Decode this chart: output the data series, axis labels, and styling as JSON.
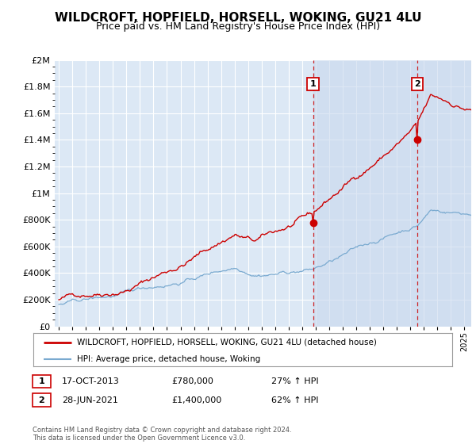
{
  "title": "WILDCROFT, HOPFIELD, HORSELL, WOKING, GU21 4LU",
  "subtitle": "Price paid vs. HM Land Registry's House Price Index (HPI)",
  "footer": "Contains HM Land Registry data © Crown copyright and database right 2024.\nThis data is licensed under the Open Government Licence v3.0.",
  "red_label": "WILDCROFT, HOPFIELD, HORSELL, WOKING, GU21 4LU (detached house)",
  "blue_label": "HPI: Average price, detached house, Woking",
  "annotation1": [
    "1",
    "17-OCT-2013",
    "£780,000",
    "27% ↑ HPI"
  ],
  "annotation2": [
    "2",
    "28-JUN-2021",
    "£1,400,000",
    "62% ↑ HPI"
  ],
  "vline1_x": 2013.8,
  "vline2_x": 2021.5,
  "dot1_x": 2013.8,
  "dot1_y": 780000,
  "dot2_x": 2021.5,
  "dot2_y": 1400000,
  "shade_start": 2013.8,
  "shade_end": 2025.5,
  "ylim": [
    0,
    2000000
  ],
  "xlim_start": 1994.7,
  "xlim_end": 2025.5,
  "plot_bg_color": "#dce8f5",
  "shade_color": "#c8d8ee",
  "red_color": "#cc0000",
  "blue_color": "#7aaad0",
  "grid_color": "#ffffff",
  "vline_color": "#cc0000",
  "title_fontsize": 11,
  "subtitle_fontsize": 9,
  "ytick_labels": [
    "£0",
    "£200K",
    "£400K",
    "£600K",
    "£800K",
    "£1M",
    "£1.2M",
    "£1.4M",
    "£1.6M",
    "£1.8M",
    "£2M"
  ],
  "ytick_values": [
    0,
    200000,
    400000,
    600000,
    800000,
    1000000,
    1200000,
    1400000,
    1600000,
    1800000,
    2000000
  ]
}
